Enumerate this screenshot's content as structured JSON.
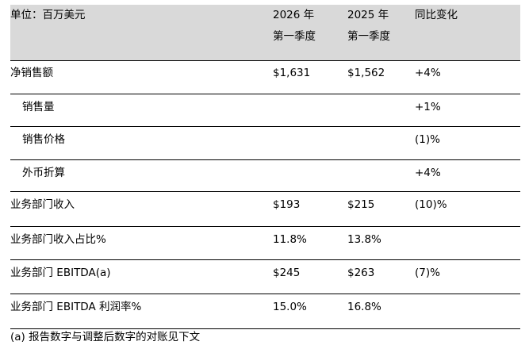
{
  "header": {
    "unit_label": "单位：百万美元",
    "col_2026": [
      "2026 年",
      "第一季度"
    ],
    "col_2025": [
      "2025 年",
      "第一季度"
    ],
    "col_yoy": "同比变化"
  },
  "rows": [
    {
      "label": "净销售额",
      "v2026": "$1,631",
      "v2025": "$1,562",
      "yoy": "+4%"
    },
    {
      "label": "销售量",
      "v2026": "",
      "v2025": "",
      "yoy": "+1%"
    },
    {
      "label": "销售价格",
      "v2026": "",
      "v2025": "",
      "yoy": "(1)%"
    },
    {
      "label": "外币折算",
      "v2026": "",
      "v2025": "",
      "yoy": "+4%"
    },
    {
      "label": "业务部门收入",
      "v2026": "$193",
      "v2025": "$215",
      "yoy": "(10)%"
    },
    {
      "label": "业务部门收入占比%",
      "v2026": "11.8%",
      "v2025": "13.8%",
      "yoy": ""
    },
    {
      "label": "业务部门 EBITDA(a)",
      "v2026": "$245",
      "v2025": "$263",
      "yoy": "(7)%"
    },
    {
      "label": "业务部门 EBITDA 利润率%",
      "v2026": "15.0%",
      "v2025": "16.8%",
      "yoy": ""
    }
  ],
  "footnote": "(a) 报告数字与调整后数字的对账见下文"
}
